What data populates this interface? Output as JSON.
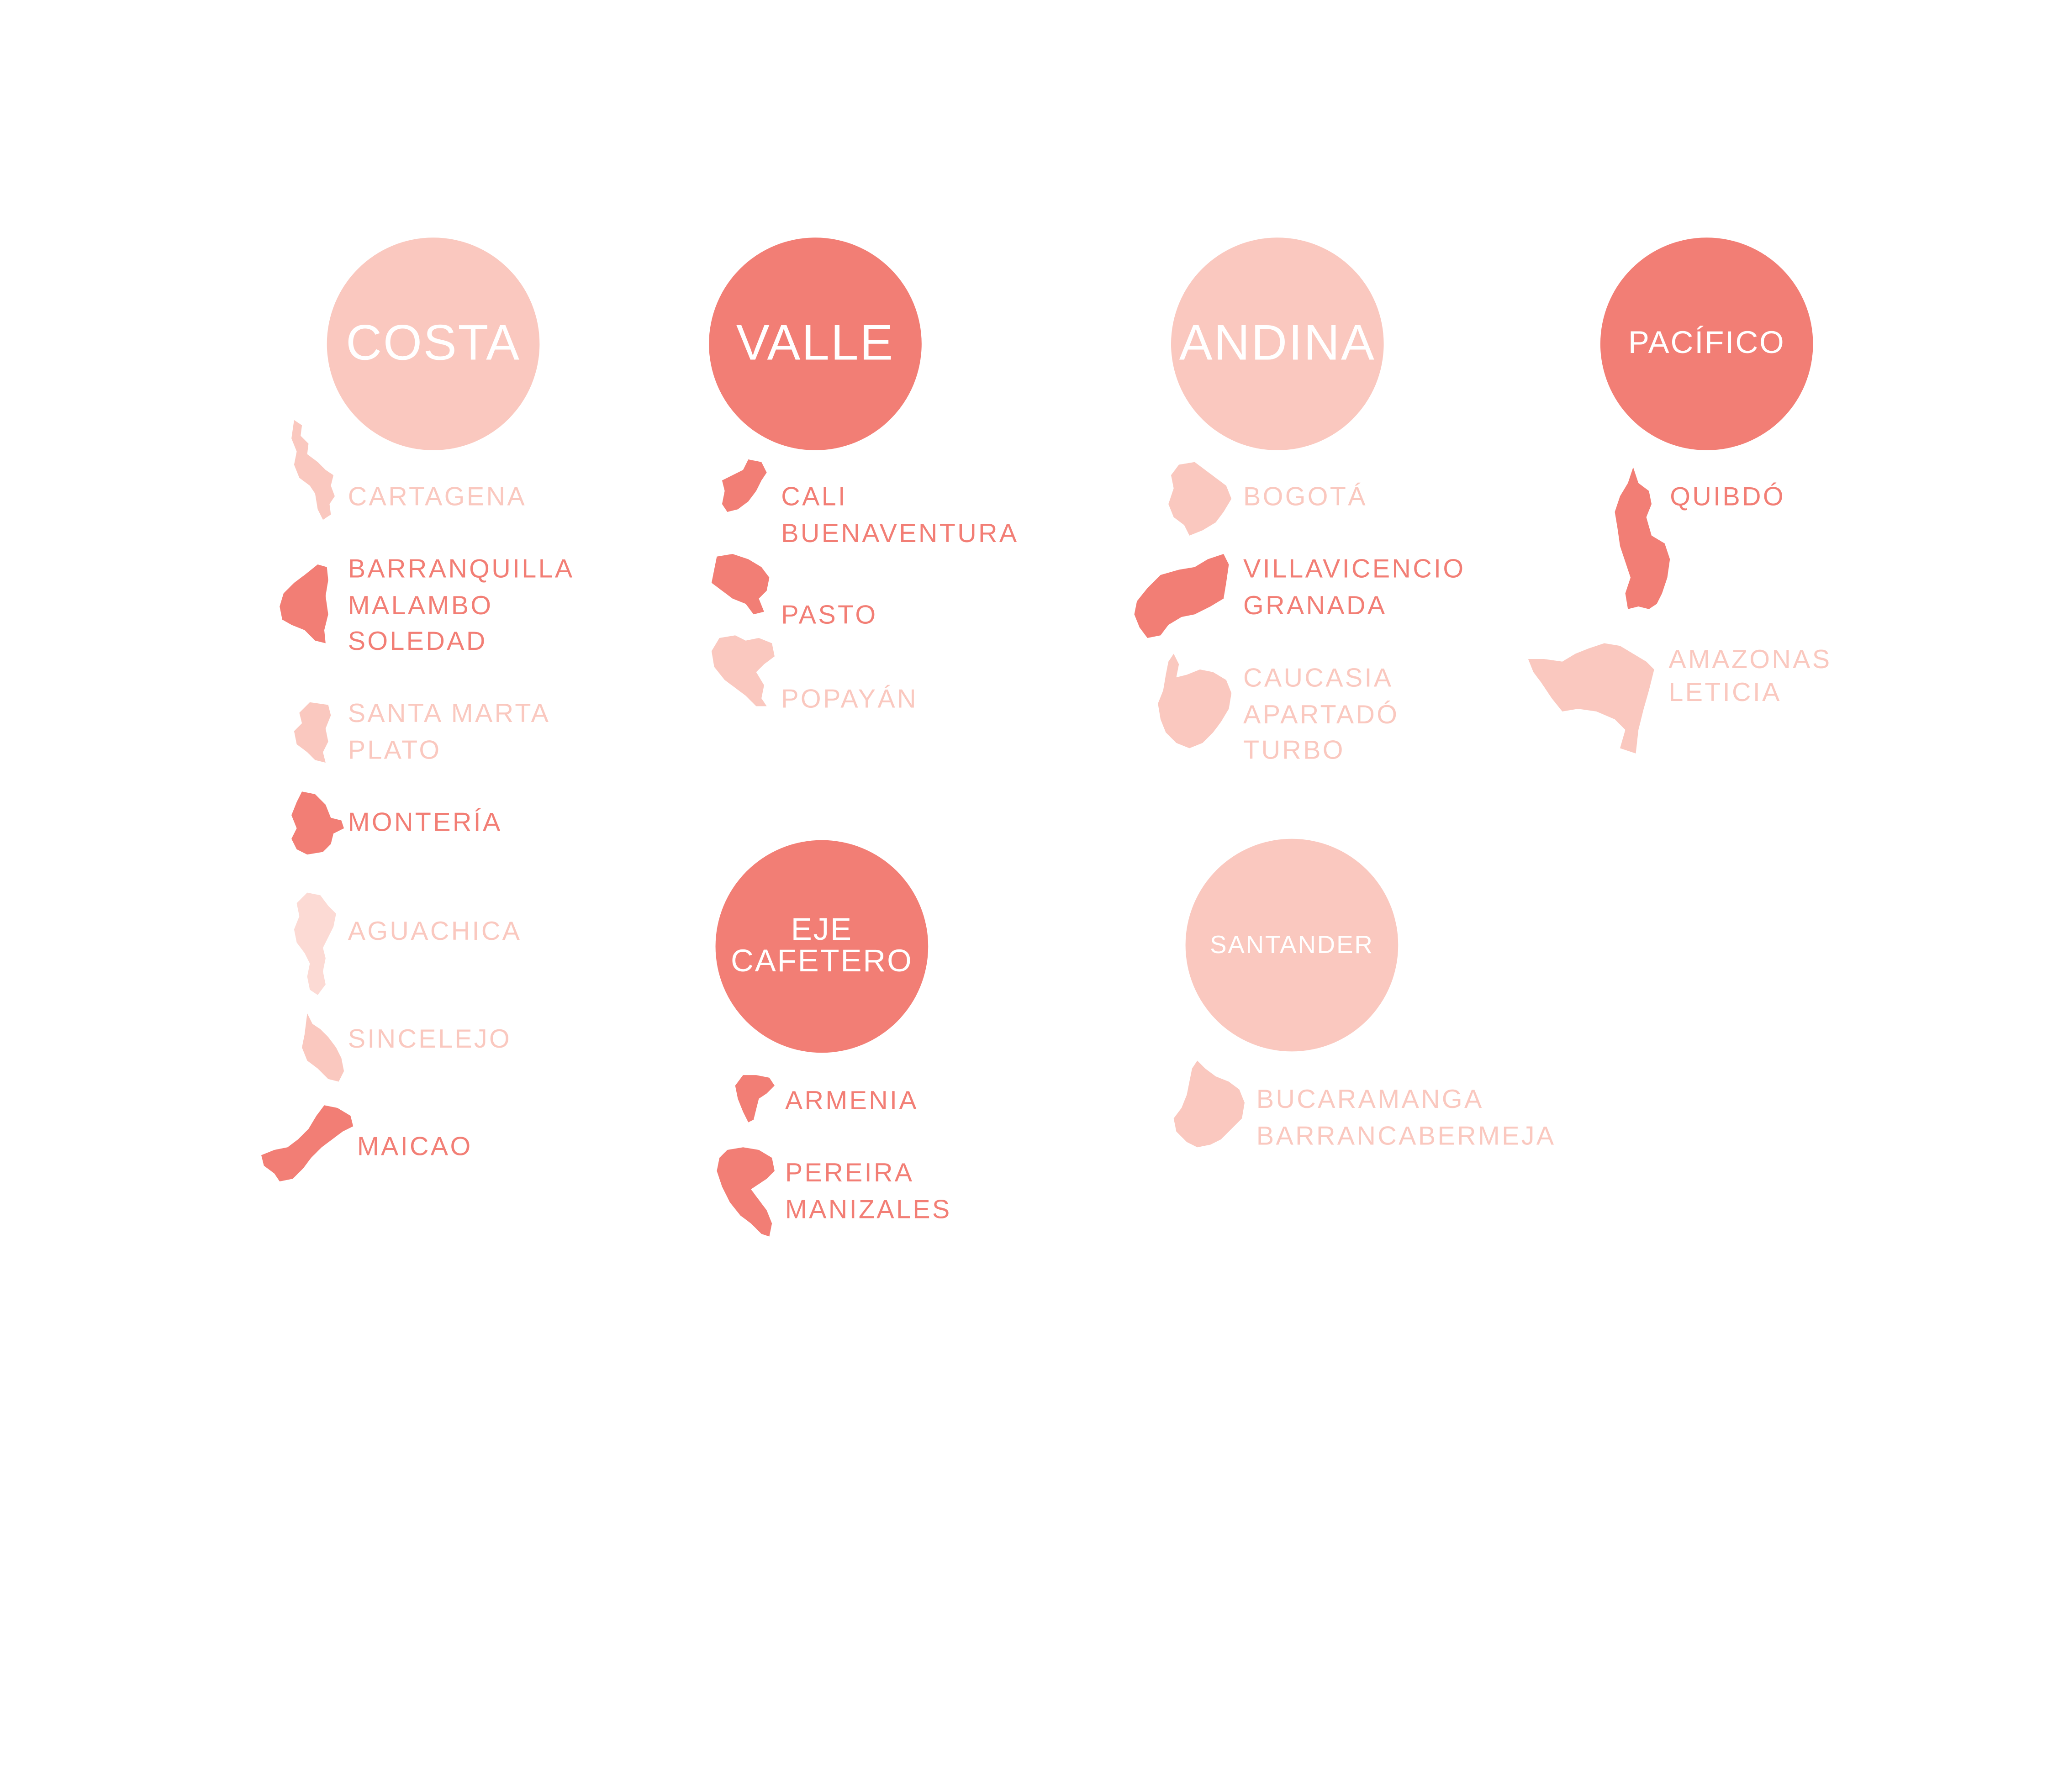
{
  "colors": {
    "dark": "#f27e75",
    "light": "#fac8bf",
    "xlight": "#fcdad4"
  },
  "regions": {
    "costa": {
      "title": "COSTA",
      "cities": [
        {
          "names": [
            "CARTAGENA"
          ]
        },
        {
          "names": [
            "BARRANQUILLA",
            "MALAMBO",
            "SOLEDAD"
          ]
        },
        {
          "names": [
            "SANTA MARTA",
            "PLATO"
          ]
        },
        {
          "names": [
            "MONTERÍA"
          ]
        },
        {
          "names": [
            "AGUACHICA"
          ]
        },
        {
          "names": [
            "SINCELEJO"
          ]
        },
        {
          "names": [
            "MAICAO"
          ]
        }
      ]
    },
    "valle": {
      "title": "VALLE",
      "cities": [
        {
          "names": [
            "CALI",
            "BUENAVENTURA"
          ]
        },
        {
          "names": [
            "PASTO"
          ]
        },
        {
          "names": [
            "POPAYÁN"
          ]
        }
      ]
    },
    "andina": {
      "title": "ANDINA",
      "cities": [
        {
          "names": [
            "BOGOTÁ"
          ]
        },
        {
          "names": [
            "VILLAVICENCIO",
            "GRANADA"
          ]
        },
        {
          "names": [
            "CAUCASIA",
            "APARTADÓ",
            "TURBO"
          ]
        }
      ]
    },
    "pacifico": {
      "title": "PACÍFICO",
      "cities": [
        {
          "names": [
            "QUIBDÓ"
          ]
        },
        {
          "names": [
            "AMAZONAS",
            "LETICIA"
          ]
        }
      ]
    },
    "eje_cafetero": {
      "title": [
        "EJE",
        "CAFETERO"
      ],
      "cities": [
        {
          "names": [
            "ARMENIA"
          ]
        },
        {
          "names": [
            "PEREIRA",
            "MANIZALES"
          ]
        }
      ]
    },
    "santander": {
      "title": "SANTANDER",
      "cities": [
        {
          "names": [
            "BUCARAMANGA",
            "BARRANCABERMEJA"
          ]
        }
      ]
    }
  }
}
